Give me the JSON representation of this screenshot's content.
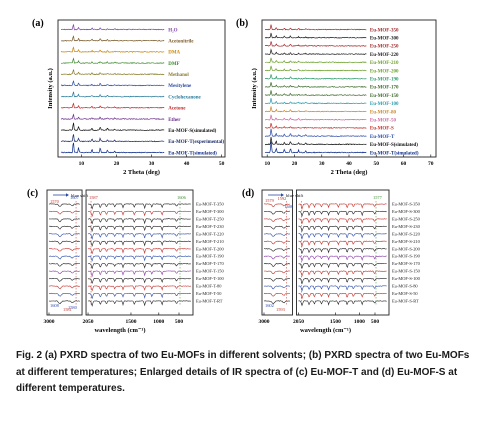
{
  "caption": "Fig. 2 (a) PXRD spectra of two Eu-MOFs in different solvents; (b) PXRD spectra of two Eu-MOFs at different temperatures; Enlarged details of IR spectra of (c) Eu-MOF-T and (d) Eu-MOF-S at different temperatures.",
  "chart_data": [
    {
      "panel": "(a)",
      "type": "line",
      "xlabel": "2 Theta (deg)",
      "ylabel": "Intensity (a.u.)",
      "xticks": [
        "10",
        "20",
        "30",
        "40",
        "50"
      ],
      "series": [
        {
          "name": "H₂O",
          "color": "#7b3fa8"
        },
        {
          "name": "Acetonitrile",
          "color": "#7a5a2a"
        },
        {
          "name": "DMA",
          "color": "#c8860a"
        },
        {
          "name": "DMF",
          "color": "#3a8a2a"
        },
        {
          "name": "Methanol",
          "color": "#8a7a2a"
        },
        {
          "name": "Mesitylene",
          "color": "#2a4aa8"
        },
        {
          "name": "Cyclohexanone",
          "color": "#2a7a9a"
        },
        {
          "name": "Acetone",
          "color": "#c02a2a"
        },
        {
          "name": "Ether",
          "color": "#6a2a8a"
        },
        {
          "name": "Eu-MOF-S(simulated)",
          "color": "#101010"
        },
        {
          "name": "Eu-MOF-T(experimental)",
          "color": "#1a2a6a"
        },
        {
          "name": "Eu-MOF-T(simulated)",
          "color": "#0a2a8a"
        }
      ]
    },
    {
      "panel": "(b)",
      "type": "line",
      "xlabel": "2 Theta (deg)",
      "ylabel": "Intensity (a.u.)",
      "xticks": [
        "10",
        "20",
        "30",
        "40",
        "50",
        "60",
        "70"
      ],
      "series": [
        {
          "name": "Eu-MOF-350",
          "color": "#a02a2a"
        },
        {
          "name": "Eu-MOF-300",
          "color": "#202020"
        },
        {
          "name": "Eu-MOF-250",
          "color": "#a02a2a"
        },
        {
          "name": "Eu-MOF-220",
          "color": "#202020"
        },
        {
          "name": "Eu-MOF-210",
          "color": "#6aa02a"
        },
        {
          "name": "Eu-MOF-200",
          "color": "#6aa02a"
        },
        {
          "name": "Eu-MOF-190",
          "color": "#2a9a6a"
        },
        {
          "name": "Eu-MOF-170",
          "color": "#3a6a2a"
        },
        {
          "name": "Eu-MOF-150",
          "color": "#3a6a2a"
        },
        {
          "name": "Eu-MOF-100",
          "color": "#2a9aaa"
        },
        {
          "name": "Eu-MOF-80",
          "color": "#c8862a"
        },
        {
          "name": "Eu-MOF-50",
          "color": "#c86aa0"
        },
        {
          "name": "Eu-MOF-S",
          "color": "#c0302a"
        },
        {
          "name": "Eu-MOF-T",
          "color": "#2a4aa8"
        },
        {
          "name": "Eu-MOF-S(simulated)",
          "color": "#101010"
        },
        {
          "name": "Eu-MOF-T(simulated)",
          "color": "#0a2a8a"
        }
      ]
    },
    {
      "panel": "(c)",
      "type": "line",
      "xlabel": "wavelength (cm⁻¹)",
      "xticks": [
        "3000",
        "2050",
        "1500",
        "1000",
        "500"
      ],
      "annotations": [
        "blue shift",
        "1570",
        "1587",
        "1607",
        "1608",
        "1581",
        "1580",
        "1606"
      ],
      "series": [
        {
          "name": "Eu-MOF-T-350",
          "color": "#202020"
        },
        {
          "name": "Eu-MOF-T-300",
          "color": "#c0302a"
        },
        {
          "name": "Eu-MOF-T-250",
          "color": "#202020"
        },
        {
          "name": "Eu-MOF-T-230",
          "color": "#202020"
        },
        {
          "name": "Eu-MOF-T-220",
          "color": "#2a4aa8"
        },
        {
          "name": "Eu-MOF-T-210",
          "color": "#202020"
        },
        {
          "name": "Eu-MOF-T-200",
          "color": "#c0302a"
        },
        {
          "name": "Eu-MOF-T-190",
          "color": "#2a4aa8"
        },
        {
          "name": "Eu-MOF-T-170",
          "color": "#202020"
        },
        {
          "name": "Eu-MOF-T-150",
          "color": "#8a3aa8"
        },
        {
          "name": "Eu-MOF-T-100",
          "color": "#202020"
        },
        {
          "name": "Eu-MOF-T-80",
          "color": "#c0302a"
        },
        {
          "name": "Eu-MOF-T-50",
          "color": "#2a4aa8"
        },
        {
          "name": "Eu-MOF-T-RT",
          "color": "#202020"
        }
      ]
    },
    {
      "panel": "(d)",
      "type": "line",
      "xlabel": "wavelength (cm⁻¹)",
      "xticks": [
        "3000",
        "2050",
        "1500",
        "1000",
        "500"
      ],
      "annotations": [
        "blue shift",
        "1579",
        "1592",
        "1606",
        "1602",
        "1593",
        "1577"
      ],
      "series": [
        {
          "name": "Eu-MOF-S-350",
          "color": "#c0302a"
        },
        {
          "name": "Eu-MOF-S-300",
          "color": "#202020"
        },
        {
          "name": "Eu-MOF-S-250",
          "color": "#c0302a"
        },
        {
          "name": "Eu-MOF-S-230",
          "color": "#202020"
        },
        {
          "name": "Eu-MOF-S-220",
          "color": "#2a4aa8"
        },
        {
          "name": "Eu-MOF-S-210",
          "color": "#c0302a"
        },
        {
          "name": "Eu-MOF-S-200",
          "color": "#202020"
        },
        {
          "name": "Eu-MOF-S-190",
          "color": "#8a3aa8"
        },
        {
          "name": "Eu-MOF-S-170",
          "color": "#202020"
        },
        {
          "name": "Eu-MOF-S-150",
          "color": "#c0302a"
        },
        {
          "name": "Eu-MOF-S-100",
          "color": "#202020"
        },
        {
          "name": "Eu-MOF-S-80",
          "color": "#2a4aa8"
        },
        {
          "name": "Eu-MOF-S-50",
          "color": "#c0302a"
        },
        {
          "name": "Eu-MOF-S-RT",
          "color": "#202020"
        }
      ]
    }
  ]
}
